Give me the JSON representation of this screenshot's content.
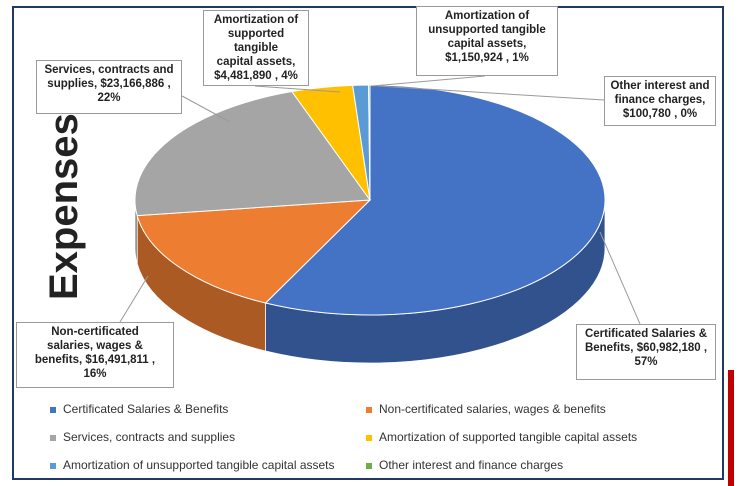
{
  "side_label": "Expenses",
  "chart_data": {
    "type": "pie",
    "title": "",
    "slices": [
      {
        "name": "Certificated Salaries & Benefits",
        "value": 60982180,
        "percent": 57,
        "color": "#4472c4",
        "label": "Certificated Salaries & Benefits, $60,982,180, 57%"
      },
      {
        "name": "Non-certificated salaries, wages & benefits",
        "value": 16491811,
        "percent": 16,
        "color": "#ed7d31",
        "label": "Non-certificated salaries, wages & benefits, $16,491,811, 16%"
      },
      {
        "name": "Services, contracts and supplies",
        "value": 23166886,
        "percent": 22,
        "color": "#a5a5a5",
        "label": "Services, contracts and supplies, $23,166,886, 22%"
      },
      {
        "name": "Amortization of supported tangible capital assets",
        "value": 4481890,
        "percent": 4,
        "color": "#ffc000",
        "label": "Amortization of supported tangible capital assets, $4,481,890, 4%"
      },
      {
        "name": "Amortization of unsupported tangible capital assets",
        "value": 1150924,
        "percent": 1,
        "color": "#5b9bd5",
        "label": "Amortization of unsupported tangible capital assets, $1,150,924, 1%"
      },
      {
        "name": "Other interest and finance charges",
        "value": 100780,
        "percent": 0,
        "color": "#70ad47",
        "label": "Other interest and finance charges, $100,780, 0%"
      }
    ],
    "legend_position": "bottom",
    "style": "3d-pie"
  }
}
